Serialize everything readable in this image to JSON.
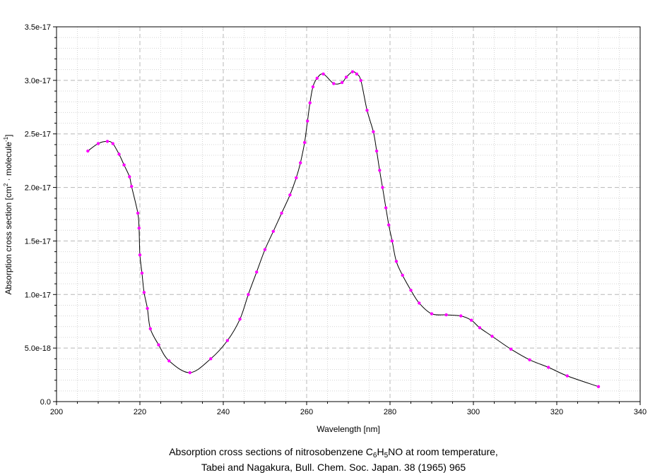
{
  "chart_data": {
    "type": "line",
    "xlabel": "Wavelength [nm]",
    "ylabel_main": "Absorption cross section [cm",
    "ylabel_sup1": "2",
    "ylabel_mid": " · molecule",
    "ylabel_sup2": "-1",
    "ylabel_end": "]",
    "xlim": [
      200,
      340
    ],
    "ylim": [
      0,
      3.5e-17
    ],
    "x_ticks": [
      200,
      220,
      240,
      260,
      280,
      300,
      320,
      340
    ],
    "x_tick_labels": [
      "200",
      "220",
      "240",
      "260",
      "280",
      "300",
      "320",
      "340"
    ],
    "y_ticks": [
      0,
      5e-18,
      1e-17,
      1.5e-17,
      2e-17,
      2.5e-17,
      3e-17,
      3.5e-17
    ],
    "y_tick_labels": [
      "0.0",
      "5.0e-18",
      "1.0e-17",
      "1.5e-17",
      "2.0e-17",
      "2.5e-17",
      "3.0e-17",
      "3.5e-17"
    ],
    "grid": true,
    "line_color": "#000000",
    "marker_color": "#ff00ff",
    "x": [
      207.5,
      210.0,
      212.2,
      213.5,
      215.0,
      216.2,
      217.5,
      218.0,
      219.5,
      219.8,
      220.0,
      220.5,
      221.0,
      221.8,
      222.5,
      224.5,
      227.0,
      232.0,
      237.0,
      241.0,
      244.0,
      246.0,
      248.0,
      250.0,
      252.0,
      254.0,
      256.0,
      257.5,
      258.5,
      259.5,
      260.2,
      260.8,
      261.5,
      262.5,
      264.0,
      266.5,
      268.5,
      269.5,
      271.0,
      272.0,
      273.0,
      274.5,
      276.0,
      276.8,
      277.5,
      278.2,
      279.0,
      279.7,
      280.5,
      281.5,
      283.0,
      285.0,
      287.0,
      290.0,
      293.5,
      297.0,
      299.5,
      301.5,
      304.5,
      309.0,
      313.5,
      318.0,
      322.5,
      330.0
    ],
    "y": [
      2.34e-17,
      2.41e-17,
      2.43e-17,
      2.41e-17,
      2.31e-17,
      2.21e-17,
      2.1e-17,
      2.01e-17,
      1.76e-17,
      1.62e-17,
      1.37e-17,
      1.2e-17,
      1.02e-17,
      8.7e-18,
      6.8e-18,
      5.3e-18,
      3.8e-18,
      2.7e-18,
      4e-18,
      5.7e-18,
      7.7e-18,
      1e-17,
      1.21e-17,
      1.42e-17,
      1.59e-17,
      1.76e-17,
      1.93e-17,
      2.09e-17,
      2.23e-17,
      2.42e-17,
      2.62e-17,
      2.79e-17,
      2.94e-17,
      3.02e-17,
      3.06e-17,
      2.97e-17,
      2.98e-17,
      3.03e-17,
      3.08e-17,
      3.06e-17,
      3e-17,
      2.72e-17,
      2.52e-17,
      2.34e-17,
      2.16e-17,
      2e-17,
      1.81e-17,
      1.65e-17,
      1.5e-17,
      1.31e-17,
      1.18e-17,
      1.04e-17,
      9.2e-18,
      8.2e-18,
      8.1e-18,
      8e-18,
      7.6e-18,
      6.9e-18,
      6.1e-18,
      4.9e-18,
      3.9e-18,
      3.2e-18,
      2.4e-18,
      1.4e-18
    ]
  },
  "caption": {
    "line1_pre": "Absorption cross sections of nitrosobenzene C",
    "sub1": "6",
    "mid1": "H",
    "sub2": "5",
    "line1_post": "NO at room temperature,",
    "line2": "Tabei and Nagakura, Bull. Chem. Soc. Japan. 38 (1965) 965"
  }
}
